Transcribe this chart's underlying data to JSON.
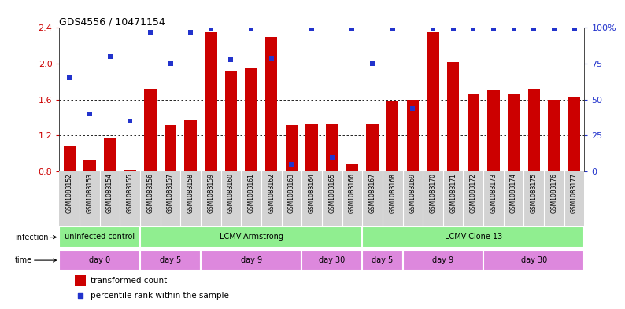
{
  "title": "GDS4556 / 10471154",
  "samples": [
    "GSM1083152",
    "GSM1083153",
    "GSM1083154",
    "GSM1083155",
    "GSM1083156",
    "GSM1083157",
    "GSM1083158",
    "GSM1083159",
    "GSM1083160",
    "GSM1083161",
    "GSM1083162",
    "GSM1083163",
    "GSM1083164",
    "GSM1083165",
    "GSM1083166",
    "GSM1083167",
    "GSM1083168",
    "GSM1083169",
    "GSM1083170",
    "GSM1083171",
    "GSM1083172",
    "GSM1083173",
    "GSM1083174",
    "GSM1083175",
    "GSM1083176",
    "GSM1083177"
  ],
  "transformed_count": [
    1.08,
    0.92,
    1.18,
    0.82,
    1.72,
    1.32,
    1.38,
    2.35,
    1.92,
    1.96,
    2.3,
    1.32,
    1.33,
    1.33,
    0.88,
    1.33,
    1.58,
    1.6,
    2.35,
    2.02,
    1.66,
    1.7,
    1.66,
    1.72,
    1.6,
    1.62
  ],
  "percentile_rank": [
    65,
    40,
    80,
    35,
    97,
    75,
    97,
    99,
    78,
    99,
    79,
    5,
    99,
    10,
    99,
    75,
    99,
    44,
    99,
    99,
    99,
    99,
    99,
    99,
    99,
    99
  ],
  "ylim_left": [
    0.8,
    2.4
  ],
  "ylim_right": [
    0,
    100
  ],
  "yticks_left": [
    0.8,
    1.2,
    1.6,
    2.0,
    2.4
  ],
  "yticks_right": [
    0,
    25,
    50,
    75,
    100
  ],
  "bar_color": "#cc0000",
  "scatter_color": "#2233cc",
  "bg_white": "#ffffff",
  "bg_gray": "#d3d3d3",
  "bg_green": "#90ee90",
  "bg_violet": "#dd88dd",
  "infection_groups": [
    {
      "label": "uninfected control",
      "start": 0,
      "end": 3
    },
    {
      "label": "LCMV-Armstrong",
      "start": 4,
      "end": 14
    },
    {
      "label": "LCMV-Clone 13",
      "start": 15,
      "end": 25
    }
  ],
  "time_groups": [
    {
      "label": "day 0",
      "start": 0,
      "end": 3
    },
    {
      "label": "day 5",
      "start": 4,
      "end": 6
    },
    {
      "label": "day 9",
      "start": 7,
      "end": 11
    },
    {
      "label": "day 30",
      "start": 12,
      "end": 14
    },
    {
      "label": "day 5",
      "start": 15,
      "end": 16
    },
    {
      "label": "day 9",
      "start": 17,
      "end": 20
    },
    {
      "label": "day 30",
      "start": 21,
      "end": 25
    }
  ],
  "legend_bar_label": "transformed count",
  "legend_dot_label": "percentile rank within the sample",
  "title_fontsize": 9,
  "bar_label_fontsize": 7,
  "tick_label_fontsize": 5.5,
  "annot_fontsize": 7,
  "legend_fontsize": 7.5,
  "yaxis_fontsize": 8
}
